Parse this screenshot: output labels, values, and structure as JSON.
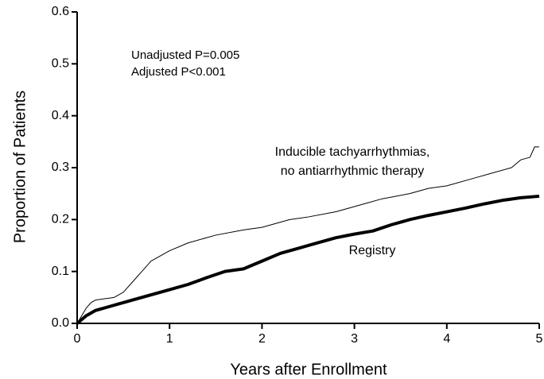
{
  "chart_data": {
    "type": "line",
    "x_label": "Years after Enrollment",
    "y_label": "Proportion of Patients",
    "annotations": [
      "Unadjusted P=0.005",
      "Adjusted P<0.001"
    ],
    "xlim": [
      0,
      5
    ],
    "ylim": [
      0,
      0.6
    ],
    "xticks": [
      0,
      1,
      2,
      3,
      4,
      5
    ],
    "yticks": [
      {
        "value": 0,
        "label": "0.0"
      },
      0.1,
      0.2,
      0.3,
      0.4,
      0.5,
      0.6
    ],
    "grid": false,
    "series": [
      {
        "name": "Inducible tachyarrhythmias,\nno antiarrhythmic therapy",
        "color": "#000000",
        "width": 1,
        "x": [
          0,
          0.05,
          0.1,
          0.15,
          0.2,
          0.4,
          0.5,
          0.6,
          0.7,
          0.8,
          0.9,
          1.0,
          1.2,
          1.5,
          1.8,
          2.0,
          2.3,
          2.5,
          2.8,
          3.0,
          3.3,
          3.6,
          3.8,
          4.0,
          4.3,
          4.5,
          4.7,
          4.8,
          4.9,
          4.95,
          5.0
        ],
        "values": [
          0,
          0.015,
          0.03,
          0.04,
          0.045,
          0.05,
          0.06,
          0.08,
          0.1,
          0.12,
          0.13,
          0.14,
          0.155,
          0.17,
          0.18,
          0.185,
          0.2,
          0.205,
          0.215,
          0.225,
          0.24,
          0.25,
          0.26,
          0.265,
          0.28,
          0.29,
          0.3,
          0.315,
          0.32,
          0.34,
          0.34
        ]
      },
      {
        "name": "Registry",
        "color": "#000000",
        "width": 4,
        "x": [
          0,
          0.1,
          0.2,
          0.4,
          0.6,
          0.8,
          1.0,
          1.2,
          1.4,
          1.6,
          1.8,
          2.0,
          2.2,
          2.4,
          2.6,
          2.8,
          3.0,
          3.2,
          3.4,
          3.6,
          3.8,
          4.0,
          4.2,
          4.4,
          4.6,
          4.8,
          5.0
        ],
        "values": [
          0,
          0.015,
          0.025,
          0.035,
          0.045,
          0.055,
          0.065,
          0.075,
          0.088,
          0.1,
          0.105,
          0.12,
          0.135,
          0.145,
          0.155,
          0.165,
          0.172,
          0.178,
          0.19,
          0.2,
          0.208,
          0.215,
          0.222,
          0.23,
          0.237,
          0.242,
          0.245
        ]
      }
    ]
  }
}
